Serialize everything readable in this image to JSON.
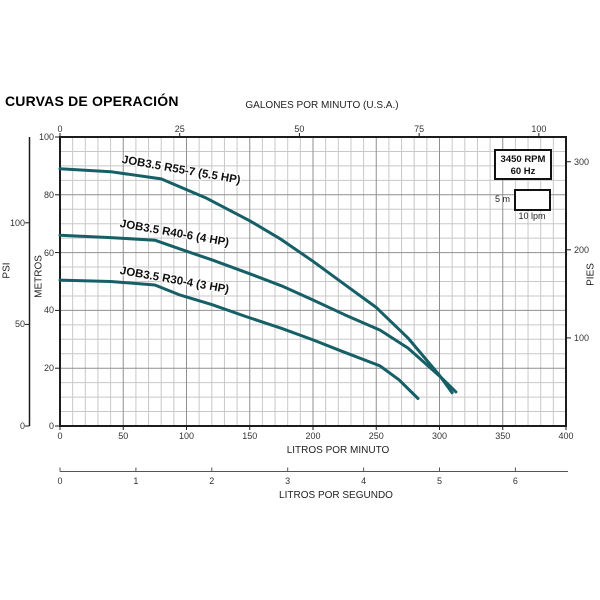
{
  "chart_data": {
    "type": "line",
    "title": "CURVAS DE OPERACIÓN",
    "xlabel": "LITROS POR MINUTO",
    "xlabel_top": "GALONES POR MINUTO (U.S.A.)",
    "xlabel_secondary": "LITROS POR SEGUNDO",
    "ylabel_left": "METROS",
    "ylabel_left_outer": "PSI",
    "ylabel_right": "PIES",
    "xlim_lpm": [
      0,
      400
    ],
    "ylim_m": [
      0,
      100
    ],
    "x_ticks_lpm": [
      0,
      50,
      100,
      150,
      200,
      250,
      300,
      350,
      400
    ],
    "x_ticks_gpm": [
      0,
      25,
      50,
      75,
      100
    ],
    "x_ticks_lps": [
      0,
      1,
      2,
      3,
      4,
      5,
      6
    ],
    "y_ticks_m": [
      0,
      20,
      40,
      60,
      80,
      100
    ],
    "y_ticks_psi": [
      0,
      50,
      100
    ],
    "y_ticks_pies": [
      100,
      200,
      300
    ],
    "grid": {
      "minor_x_step_lpm": 10,
      "minor_y_step_m": 5,
      "major_x_step_lpm": 50,
      "major_y_step_m": 20
    },
    "series": [
      {
        "name": "JOB3.5 R55-7 (5.5 HP)",
        "points_lpm_m": [
          [
            0,
            89
          ],
          [
            40,
            88
          ],
          [
            80,
            85.5
          ],
          [
            115,
            79
          ],
          [
            150,
            71
          ],
          [
            175,
            64.5
          ],
          [
            200,
            57
          ],
          [
            225,
            49
          ],
          [
            250,
            41
          ],
          [
            275,
            30.5
          ],
          [
            300,
            17.5
          ],
          [
            310,
            11.5
          ]
        ]
      },
      {
        "name": "JOB3.5 R40-6 (4 HP)",
        "points_lpm_m": [
          [
            0,
            66
          ],
          [
            40,
            65.2
          ],
          [
            75,
            64.3
          ],
          [
            95,
            61.2
          ],
          [
            120,
            57.5
          ],
          [
            148,
            53
          ],
          [
            175,
            48.5
          ],
          [
            200,
            43.6
          ],
          [
            225,
            38.5
          ],
          [
            253,
            33.2
          ],
          [
            275,
            27
          ],
          [
            302,
            16.5
          ],
          [
            313,
            11.8
          ]
        ]
      },
      {
        "name": "JOB3.5 R30-4 (3 HP)",
        "points_lpm_m": [
          [
            0,
            50.5
          ],
          [
            40,
            50
          ],
          [
            75,
            48.8
          ],
          [
            95,
            45.3
          ],
          [
            120,
            42
          ],
          [
            148,
            37.7
          ],
          [
            175,
            33.8
          ],
          [
            200,
            29.8
          ],
          [
            225,
            25.5
          ],
          [
            253,
            20.8
          ],
          [
            268,
            16
          ],
          [
            283,
            9.5
          ]
        ]
      }
    ],
    "annotations": {
      "rpm": "3450 RPM",
      "frequency": "60 Hz",
      "cell_height": "5 m",
      "cell_width": "10 lpm"
    }
  },
  "colors": {
    "curve": "#165f66",
    "grid_minor": "#c8c8c8",
    "grid_major": "#8f8f8f",
    "axis": "#1c1c1c",
    "secondary_axis": "#555555",
    "tick_text": "#333333"
  }
}
